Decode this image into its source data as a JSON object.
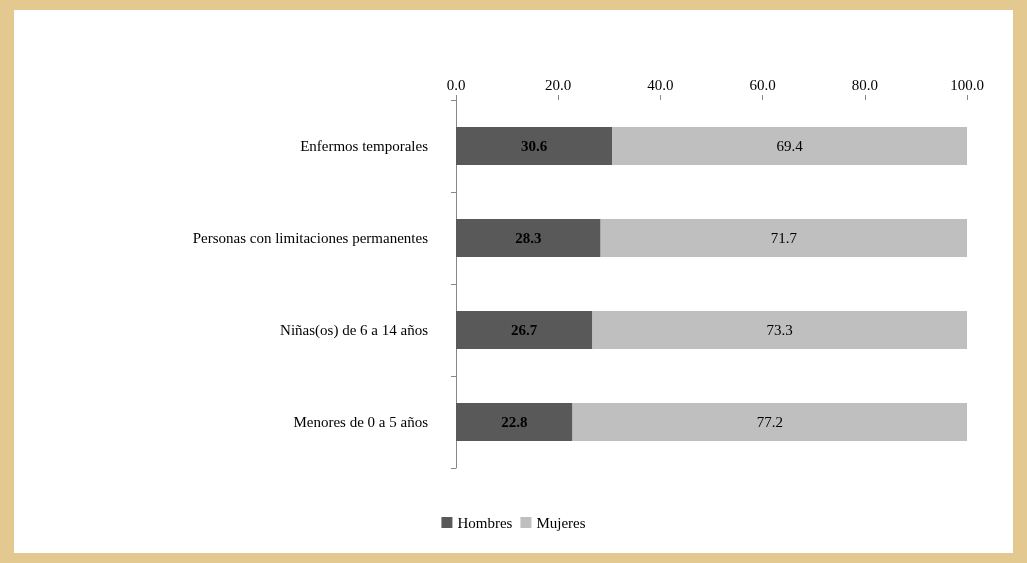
{
  "chart_data": {
    "type": "bar",
    "orientation": "horizontal",
    "stacked": true,
    "categories": [
      "Enfermos temporales",
      "Personas con limitaciones permanentes",
      "Niñas(os) de 6 a 14 años",
      "Menores de 0 a 5 años"
    ],
    "series": [
      {
        "name": "Hombres",
        "color": "#595959",
        "values": [
          30.6,
          28.3,
          26.7,
          22.8
        ]
      },
      {
        "name": "Mujeres",
        "color": "#bfbfbf",
        "values": [
          69.4,
          71.7,
          73.3,
          77.2
        ]
      }
    ],
    "xlim": [
      0,
      100
    ],
    "xticks": [
      {
        "value": 0,
        "label": "0.0"
      },
      {
        "value": 20,
        "label": "20.0"
      },
      {
        "value": 40,
        "label": "40.0"
      },
      {
        "value": 60,
        "label": "60.0"
      },
      {
        "value": 80,
        "label": "80.0"
      },
      {
        "value": 100,
        "label": "100.0"
      }
    ],
    "data_labels": true,
    "grid": false,
    "legend": "bottom"
  }
}
